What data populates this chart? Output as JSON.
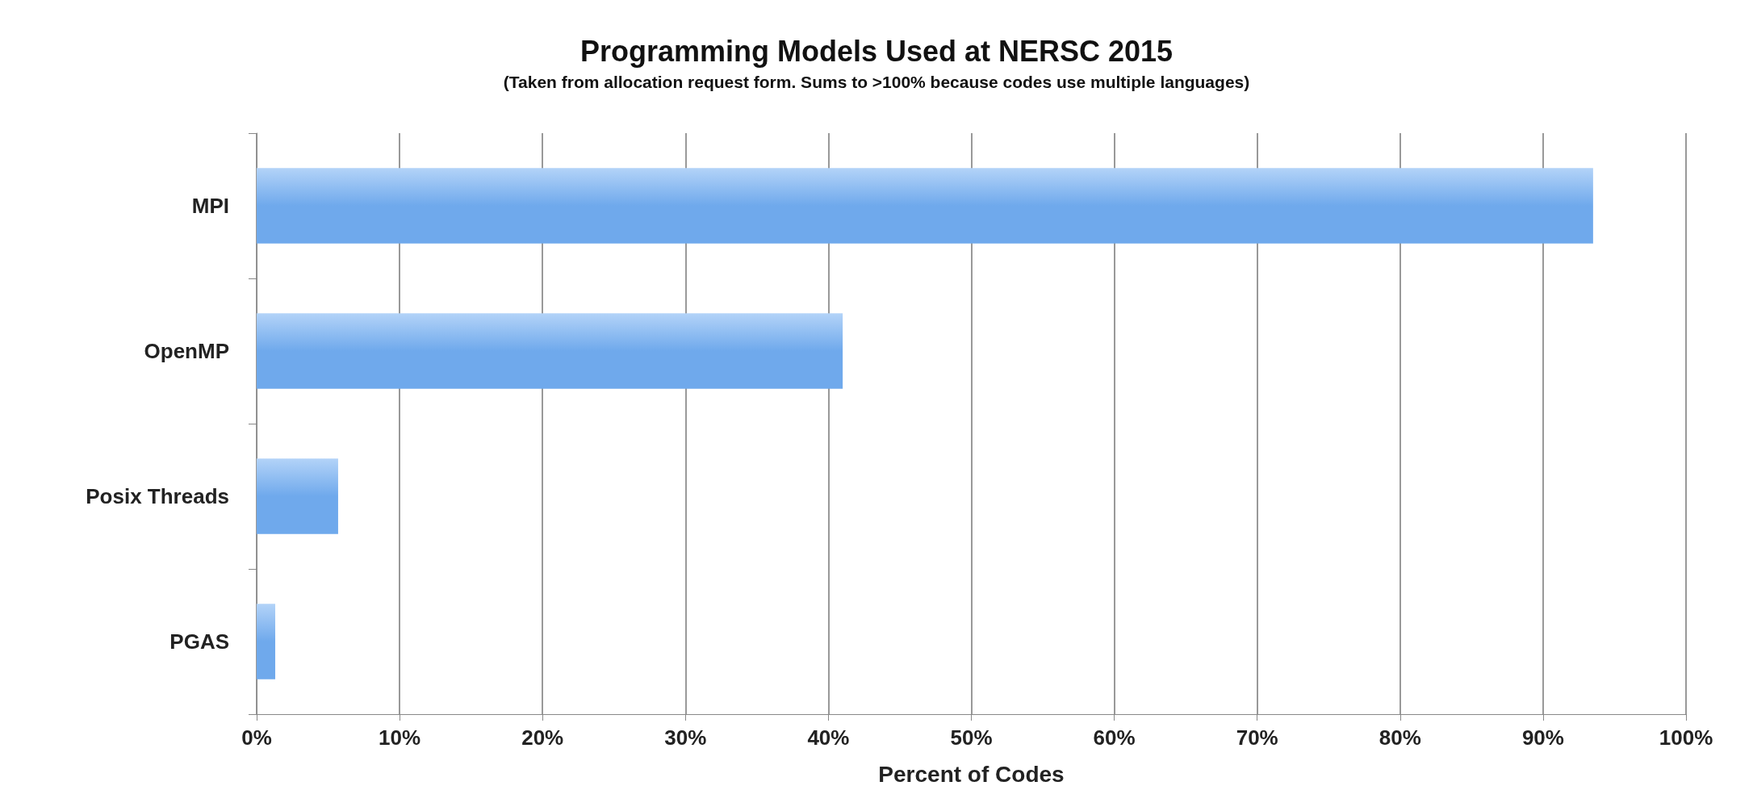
{
  "chart_data": {
    "type": "bar",
    "orientation": "horizontal",
    "title": "Programming Models Used at NERSC 2015",
    "subtitle": "(Taken from allocation request form. Sums to >100% because codes use multiple languages)",
    "xlabel": "Percent of Codes",
    "categories": [
      "MPI",
      "OpenMP",
      "Posix Threads",
      "PGAS"
    ],
    "values": [
      93.5,
      41,
      5.7,
      1.3
    ],
    "color": "#6fa9ec",
    "xlim": [
      0,
      100
    ],
    "xticks": [
      {
        "value": 0,
        "label": "0%"
      },
      {
        "value": 10,
        "label": "10%"
      },
      {
        "value": 20,
        "label": "20%"
      },
      {
        "value": 30,
        "label": "30%"
      },
      {
        "value": 40,
        "label": "40%"
      },
      {
        "value": 50,
        "label": "50%"
      },
      {
        "value": 60,
        "label": "60%"
      },
      {
        "value": 70,
        "label": "70%"
      },
      {
        "value": 80,
        "label": "80%"
      },
      {
        "value": 90,
        "label": "90%"
      },
      {
        "value": 100,
        "label": "100%"
      }
    ],
    "grid": "x"
  }
}
